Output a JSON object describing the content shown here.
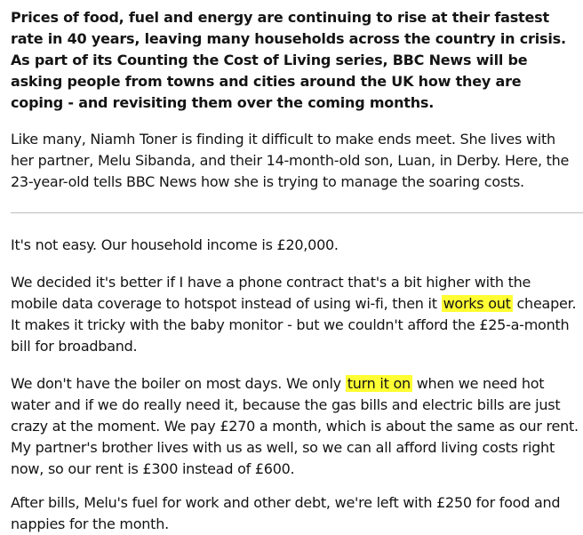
{
  "intro": "Prices of food, fuel and energy are continuing to rise at their fastest rate in 40 years, leaving many households across the country in crisis. As part of its Counting the Cost of Living series, BBC News will be asking people from towns and cities around the UK how they are coping - and revisiting them over the coming months.",
  "lede": "Like many, Niamh Toner is finding it difficult to make ends meet. She lives with her partner, Melu Sibanda, and their 14-month-old son, Luan, in Derby. Here, the 23-year-old tells BBC News how she is trying to manage the soaring costs.",
  "paragraphs": {
    "p1": "It's not easy. Our household income is £20,000.",
    "p2_before": "We decided it's better if I have a phone contract that's a bit higher with the mobile data coverage to hotspot instead of using wi-fi, then it ",
    "p2_highlight": "works out",
    "p2_after": " cheaper. It makes it tricky with the baby monitor - but we couldn't afford the £25-a-month bill for broadband.",
    "p3_before": "We don't have the boiler on most days. We only ",
    "p3_highlight": "turn it on",
    "p3_after": " when we need hot water and if we do really need it, because the gas bills and electric bills are just crazy at the moment. We pay £270 a month, which is about the same as our rent. My partner's brother lives with us as well, so we can all afford living costs right now, so our rent is £300 instead of £600.",
    "p4": "After bills, Melu's fuel for work and other debt, we're left with £250 for food and nappies for the month."
  },
  "colors": {
    "highlight": "#ffff33",
    "text": "#141414",
    "divider": "#bdbdbd"
  }
}
